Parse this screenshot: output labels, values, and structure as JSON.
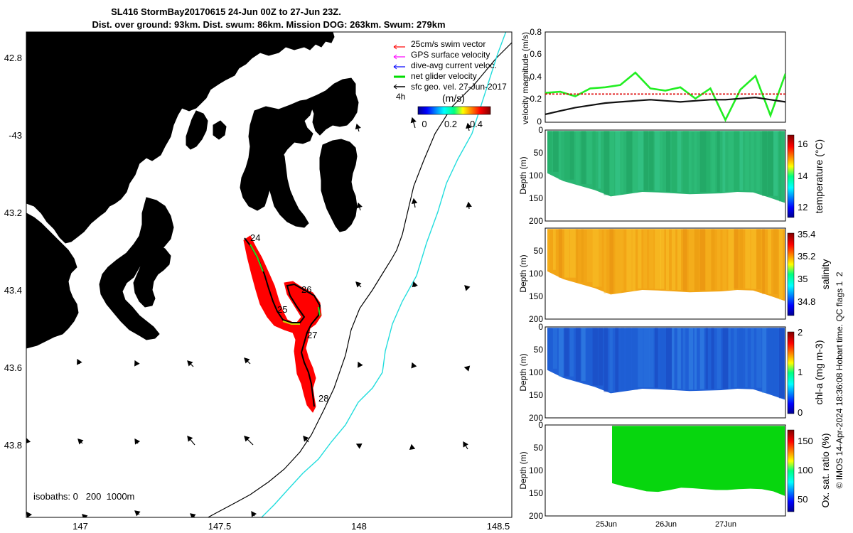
{
  "header": {
    "line1": "SL416 StormBay20170615 24-Jun 00Z to 27-Jun 23Z.",
    "line2": "Dist. over ground: 93km. Dist. swum: 86km. Mission DOG: 263km. Swum: 279km"
  },
  "chart_data": [
    {
      "type": "map",
      "id": "track-map",
      "lon_ticks": [
        "147",
        "147.5",
        "148",
        "148.5"
      ],
      "lat_ticks": [
        "42.8",
        "-43",
        "43.2",
        "43.4",
        "43.6",
        "43.8"
      ],
      "legend": [
        {
          "label": "25cm/s swim vector",
          "color": "#ff0000"
        },
        {
          "label": "GPS surface velocity",
          "color": "#ff00ff"
        },
        {
          "label": "dive-avg current veloc.",
          "color": "#0000ff"
        },
        {
          "label": "net glider velocity",
          "color": "#00dd00"
        },
        {
          "label": "sfc geo. vel. 27-Jun-2017",
          "color": "#000000"
        }
      ],
      "colorbar": {
        "unit_label": "(m/s)",
        "side_label": "4h",
        "ticks": [
          "0",
          "0.2",
          "0.4"
        ]
      },
      "day_labels": [
        "24",
        "25",
        "26",
        "27",
        "28"
      ],
      "isobaths_label": "isobaths: 0   200  1000m",
      "land_color": "#f9c898",
      "swim_color": "#ff0000"
    },
    {
      "type": "line",
      "id": "velocity-panel",
      "ylabel": "velocity magnitude (m/s)",
      "yticks": [
        "0",
        "0.2",
        "0.4",
        "0.6",
        "0.8"
      ],
      "ylim": [
        0,
        0.8
      ],
      "x_days": [
        0,
        0.25,
        0.5,
        0.75,
        1,
        1.25,
        1.5,
        1.75,
        2,
        2.25,
        2.5,
        2.75,
        3,
        3.25,
        3.5,
        3.75,
        4
      ],
      "series": [
        {
          "name": "net glider velocity",
          "color": "#22ee22",
          "values": [
            0.26,
            0.27,
            0.23,
            0.3,
            0.31,
            0.33,
            0.44,
            0.3,
            0.28,
            0.31,
            0.21,
            0.3,
            0.02,
            0.29,
            0.41,
            0.06,
            0.43
          ]
        },
        {
          "name": "swim speed",
          "color": "#dd0000",
          "values": [
            0.25,
            0.25,
            0.25,
            0.25,
            0.25,
            0.25,
            0.25,
            0.25,
            0.25,
            0.25,
            0.25,
            0.25,
            0.25,
            0.25,
            0.25,
            0.25,
            0.25
          ]
        },
        {
          "name": "dive-avg current",
          "color": "#111111",
          "values": [
            0.07,
            0.1,
            0.13,
            0.15,
            0.17,
            0.18,
            0.19,
            0.2,
            0.19,
            0.18,
            0.19,
            0.2,
            0.2,
            0.21,
            0.22,
            0.2,
            0.18
          ]
        }
      ]
    },
    {
      "type": "heatmap",
      "id": "temperature-panel",
      "ylabel": "Depth (m)",
      "yticks": [
        "0",
        "50",
        "100",
        "150",
        "200"
      ],
      "colorbar_label": "temperature (°C)",
      "cbar_ticks": [
        "12",
        "14",
        "16"
      ],
      "cbar_range": [
        11.5,
        16.8
      ],
      "bottom_depth": [
        95,
        112,
        122,
        132,
        146,
        141,
        136,
        137,
        139,
        141,
        140,
        139,
        136,
        137,
        148,
        160
      ],
      "value": 13.6
    },
    {
      "type": "heatmap",
      "id": "salinity-panel",
      "ylabel": "Depth (m)",
      "yticks": [
        "50",
        "100",
        "150",
        "200"
      ],
      "colorbar_label": "salinity",
      "cbar_ticks": [
        "34.8",
        "35",
        "35.2",
        "35.4"
      ],
      "cbar_range": [
        34.7,
        35.4
      ],
      "bottom_depth": [
        95,
        112,
        122,
        132,
        146,
        141,
        136,
        137,
        139,
        141,
        140,
        139,
        136,
        137,
        148,
        160
      ],
      "value": 35.12
    },
    {
      "type": "heatmap",
      "id": "chla-panel",
      "ylabel": "Depth (m)",
      "yticks": [
        "0",
        "50",
        "100",
        "150",
        "200"
      ],
      "colorbar_label": "chl-a (mg m-3)",
      "cbar_ticks": [
        "0",
        "1",
        "2"
      ],
      "cbar_range": [
        0,
        2
      ],
      "bottom_depth": [
        95,
        112,
        122,
        132,
        146,
        141,
        136,
        137,
        139,
        141,
        140,
        139,
        136,
        137,
        148,
        160
      ],
      "value": 0.45
    },
    {
      "type": "heatmap",
      "id": "oxygen-panel",
      "ylabel": "Depth (m)",
      "yticks": [
        "0",
        "50",
        "100",
        "150",
        "200"
      ],
      "colorbar_label": "Ox. sat. ratio (%)",
      "cbar_ticks": [
        "50",
        "100",
        "150"
      ],
      "cbar_range": [
        30,
        170
      ],
      "bottom_depth": [
        128,
        135,
        140,
        146,
        147,
        143,
        138,
        139,
        141,
        143,
        143,
        141,
        140,
        141,
        146,
        156
      ],
      "value": 102,
      "x_ticks": [
        "25Jun",
        "26Jun",
        "27Jun"
      ]
    }
  ],
  "footer": {
    "credit": "© IMOS 14-Apr-2024 18:36:08 Hobart time. QC flags 1  2"
  }
}
